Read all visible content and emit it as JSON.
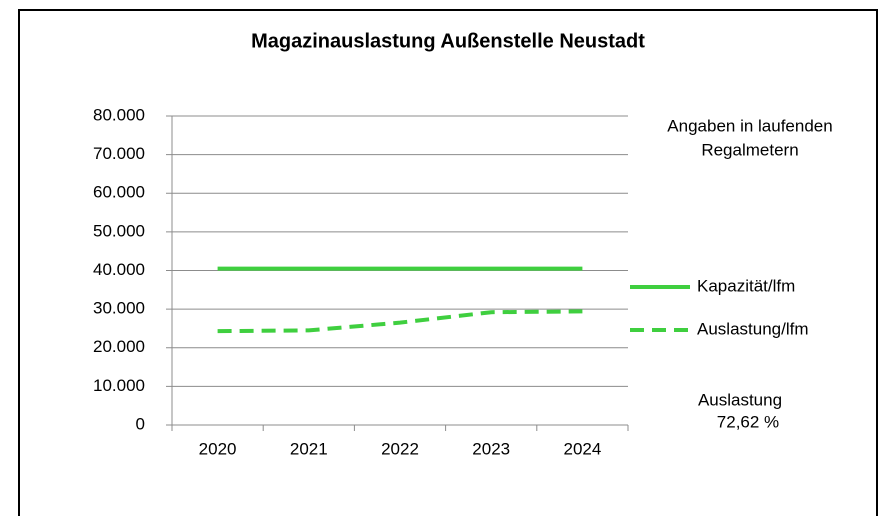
{
  "chart_data": {
    "type": "line",
    "title": "Magazinauslastung Außenstelle Neustadt",
    "categories": [
      "2020",
      "2021",
      "2022",
      "2023",
      "2024"
    ],
    "series": [
      {
        "name": "Kapazität/lfm",
        "color": "#3fcf3f",
        "dash": false,
        "values": [
          40500,
          40500,
          40500,
          40500,
          40500
        ]
      },
      {
        "name": "Auslastung/lfm",
        "color": "#3fcf3f",
        "dash": true,
        "values": [
          24300,
          24500,
          26500,
          29200,
          29410
        ]
      }
    ],
    "ylim": [
      0,
      80000
    ],
    "yticks": [
      0,
      {
        "value": 10000,
        "label": "10.000"
      },
      {
        "value": 20000,
        "label": "20.000"
      },
      {
        "value": 30000,
        "label": "30.000"
      },
      {
        "value": 40000,
        "label": "40.000"
      },
      {
        "value": 50000,
        "label": "50.000"
      },
      {
        "value": 60000,
        "label": "60.000"
      },
      {
        "value": 70000,
        "label": "70.000"
      },
      {
        "value": 80000,
        "label": "80.000"
      }
    ],
    "grid": true,
    "legend": "right",
    "note": [
      "Angaben in laufenden",
      "Regalmetern"
    ],
    "utilization_note": [
      "Auslastung",
      "72,62 %"
    ]
  }
}
